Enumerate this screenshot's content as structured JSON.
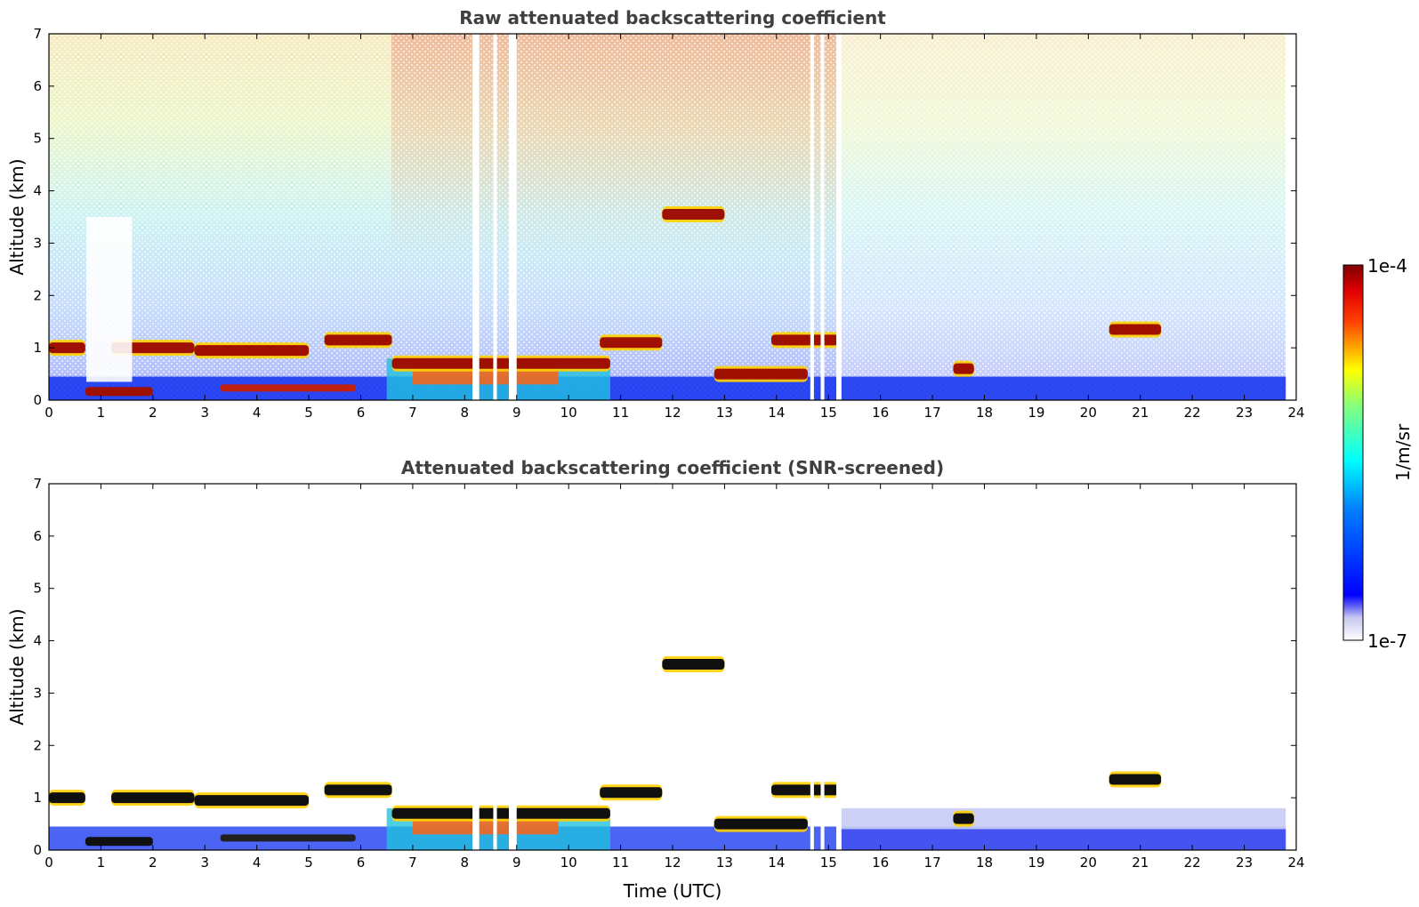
{
  "chart_data": [
    {
      "type": "heatmap",
      "title": "Raw attenuated backscattering coefficient",
      "xlabel": "",
      "ylabel": "Altitude (km)",
      "xlim": [
        0,
        24
      ],
      "ylim": [
        0,
        7
      ],
      "xticks": [
        "0",
        "1",
        "2",
        "3",
        "4",
        "5",
        "6",
        "7",
        "8",
        "9",
        "10",
        "11",
        "12",
        "13",
        "14",
        "15",
        "16",
        "17",
        "18",
        "19",
        "20",
        "21",
        "22",
        "23",
        "24"
      ],
      "yticks": [
        "0",
        "1",
        "2",
        "3",
        "4",
        "5",
        "6",
        "7"
      ],
      "data_end_time": 23.8,
      "cloud_layers": [
        {
          "t_start": 0.0,
          "t_end": 0.7,
          "altitude_km": 1.0
        },
        {
          "t_start": 1.2,
          "t_end": 2.8,
          "altitude_km": 1.0
        },
        {
          "t_start": 2.8,
          "t_end": 5.0,
          "altitude_km": 0.95
        },
        {
          "t_start": 5.3,
          "t_end": 6.6,
          "altitude_km": 1.15
        },
        {
          "t_start": 6.6,
          "t_end": 10.8,
          "altitude_km": 0.7
        },
        {
          "t_start": 10.6,
          "t_end": 11.8,
          "altitude_km": 1.1
        },
        {
          "t_start": 11.8,
          "t_end": 13.0,
          "altitude_km": 3.55
        },
        {
          "t_start": 12.8,
          "t_end": 14.6,
          "altitude_km": 0.5
        },
        {
          "t_start": 13.9,
          "t_end": 15.2,
          "altitude_km": 1.15
        },
        {
          "t_start": 17.4,
          "t_end": 17.8,
          "altitude_km": 0.6
        },
        {
          "t_start": 20.4,
          "t_end": 21.4,
          "altitude_km": 1.35
        }
      ]
    },
    {
      "type": "heatmap",
      "title": "Attenuated backscattering coefficient (SNR-screened)",
      "xlabel": "Time (UTC)",
      "ylabel": "Altitude (km)",
      "xlim": [
        0,
        24
      ],
      "ylim": [
        0,
        7
      ],
      "xticks": [
        "0",
        "1",
        "2",
        "3",
        "4",
        "5",
        "6",
        "7",
        "8",
        "9",
        "10",
        "11",
        "12",
        "13",
        "14",
        "15",
        "16",
        "17",
        "18",
        "19",
        "20",
        "21",
        "22",
        "23",
        "24"
      ],
      "yticks": [
        "0",
        "1",
        "2",
        "3",
        "4",
        "5",
        "6",
        "7"
      ],
      "data_end_time": 23.8
    }
  ],
  "colorbar": {
    "label": "1/m/sr",
    "max_label": "1e-4",
    "min_label": "1e-7",
    "scale": "log",
    "range": [
      1e-07,
      0.0001
    ],
    "colors": [
      "#ffffff",
      "#0000ff",
      "#00ffff",
      "#ffff00",
      "#ff0000",
      "#800000"
    ]
  }
}
